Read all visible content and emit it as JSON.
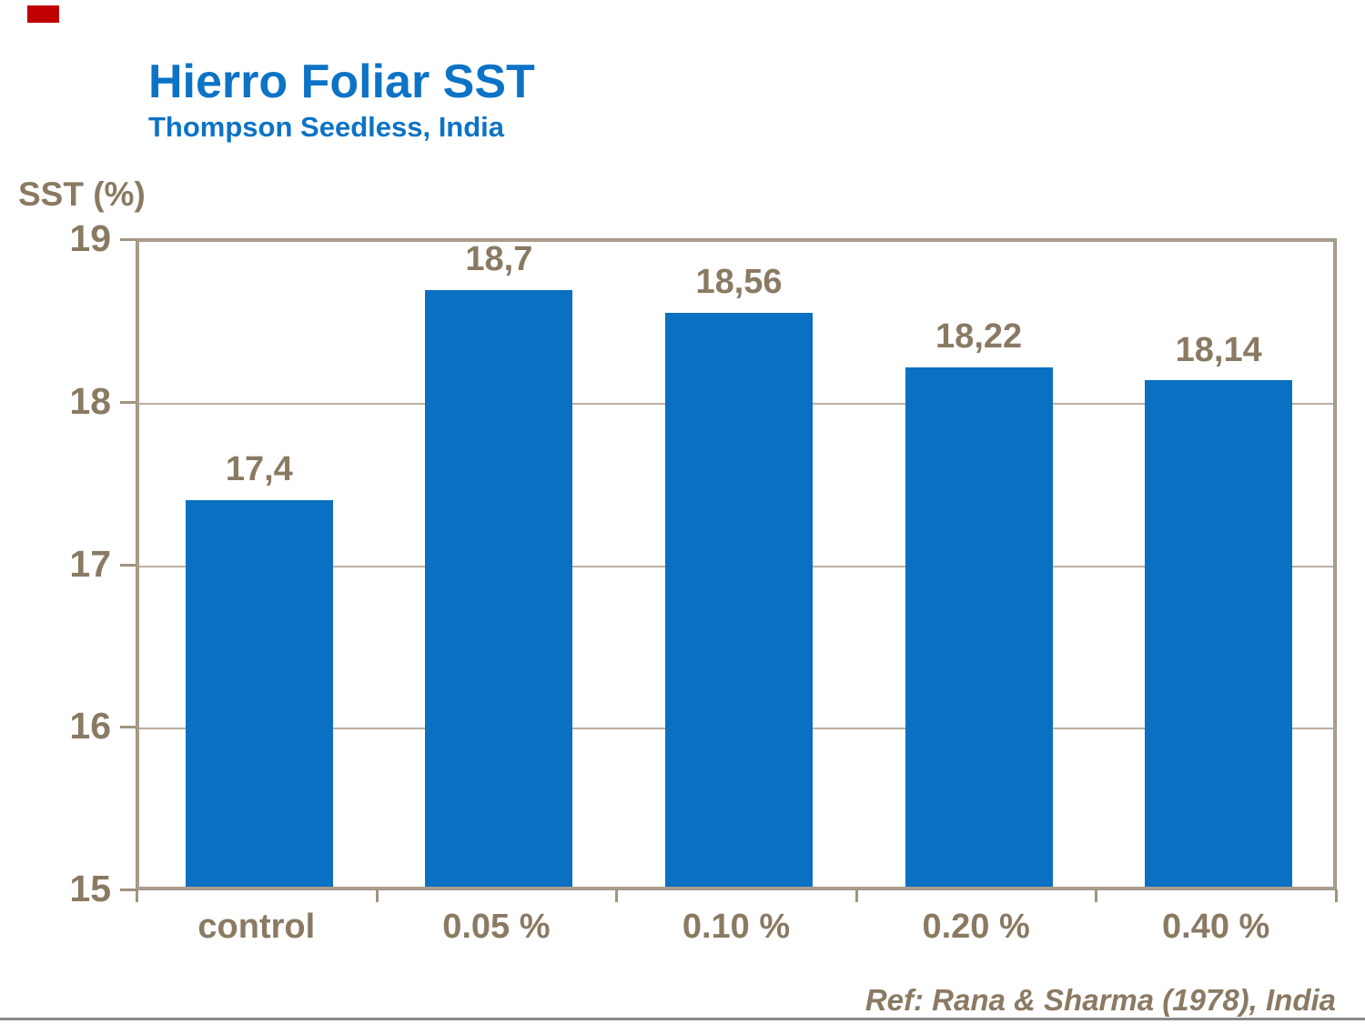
{
  "slide": {
    "title": "Hierro Foliar SST",
    "subtitle": "Thompson Seedless, India",
    "reference": "Ref: Rana & Sharma (1978), India",
    "accent_logo_color": "#c00000",
    "title_color": "#0d73c6",
    "text_color": "#8a7a63",
    "axis_color": "#ab9d8a",
    "gridline_color": "#bcafa0",
    "tick_color": "#a2937e",
    "bottom_rule_color": "#8a8a8a"
  },
  "chart_data": {
    "type": "bar",
    "title": "Hierro Foliar SST",
    "subtitle": "Thompson Seedless, India",
    "xlabel": "",
    "ylabel": "SST (%)",
    "categories": [
      "control",
      "0.05 %",
      "0.10 %",
      "0.20 %",
      "0.40 %"
    ],
    "values": [
      17.4,
      18.7,
      18.56,
      18.22,
      18.14
    ],
    "value_labels": [
      "17,4",
      "18,7",
      "18,56",
      "18,22",
      "18,14"
    ],
    "ylim": [
      15,
      19
    ],
    "yticks": [
      15,
      16,
      17,
      18,
      19
    ],
    "grid": true,
    "legend": "none",
    "bar_color": "#0a70c2",
    "label_color": "#8a7a63",
    "annotation": "Ref: Rana & Sharma (1978), India"
  }
}
